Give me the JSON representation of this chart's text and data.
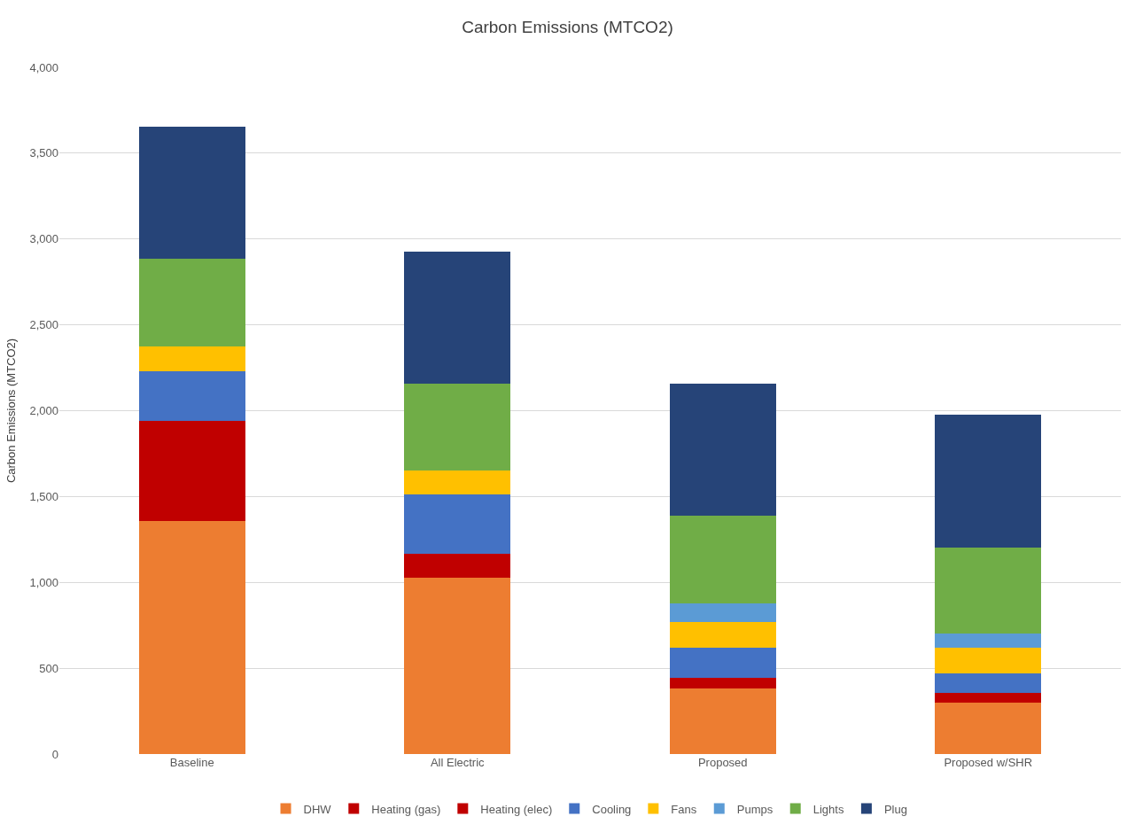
{
  "chart_data": {
    "type": "bar",
    "title": "Carbon Emissions (MTCO2)",
    "ylabel": "Carbon Emissions (MTCO2)",
    "stacked": true,
    "grid": "y",
    "legend": "bottom",
    "categories": [
      "Baseline",
      "All Electric",
      "Proposed",
      "Proposed w/SHR"
    ],
    "ylim": [
      0,
      4000
    ],
    "yticks": [
      0,
      500,
      {
        "value": 1000,
        "label": "1,000"
      },
      {
        "value": 1500,
        "label": "1,500"
      },
      {
        "value": 2000,
        "label": "2,000"
      },
      {
        "value": 2500,
        "label": "2,500"
      },
      {
        "value": 3000,
        "label": "3,000"
      },
      {
        "value": 3500,
        "label": "3,500"
      },
      {
        "value": 4000,
        "label": "4,000"
      }
    ],
    "series": [
      {
        "name": "DHW",
        "color": "#ed7d31",
        "values": [
          1360,
          1025,
          380,
          300
        ]
      },
      {
        "name": "Heating (gas)",
        "color": "#c00000",
        "values": [
          580,
          0,
          0,
          0
        ]
      },
      {
        "name": "Heating (elec)",
        "color": "#c00000",
        "values": [
          0,
          140,
          65,
          55
        ]
      },
      {
        "name": "Cooling",
        "color": "#4472c4",
        "values": [
          290,
          345,
          175,
          115
        ]
      },
      {
        "name": "Fans",
        "color": "#ffc000",
        "values": [
          145,
          140,
          150,
          150
        ]
      },
      {
        "name": "Pumps",
        "color": "#5b9bd5",
        "values": [
          0,
          0,
          110,
          80
        ]
      },
      {
        "name": "Lights",
        "color": "#70ad47",
        "values": [
          510,
          510,
          510,
          505
        ]
      },
      {
        "name": "Plug",
        "color": "#264478",
        "values": [
          770,
          765,
          765,
          770
        ]
      }
    ]
  }
}
